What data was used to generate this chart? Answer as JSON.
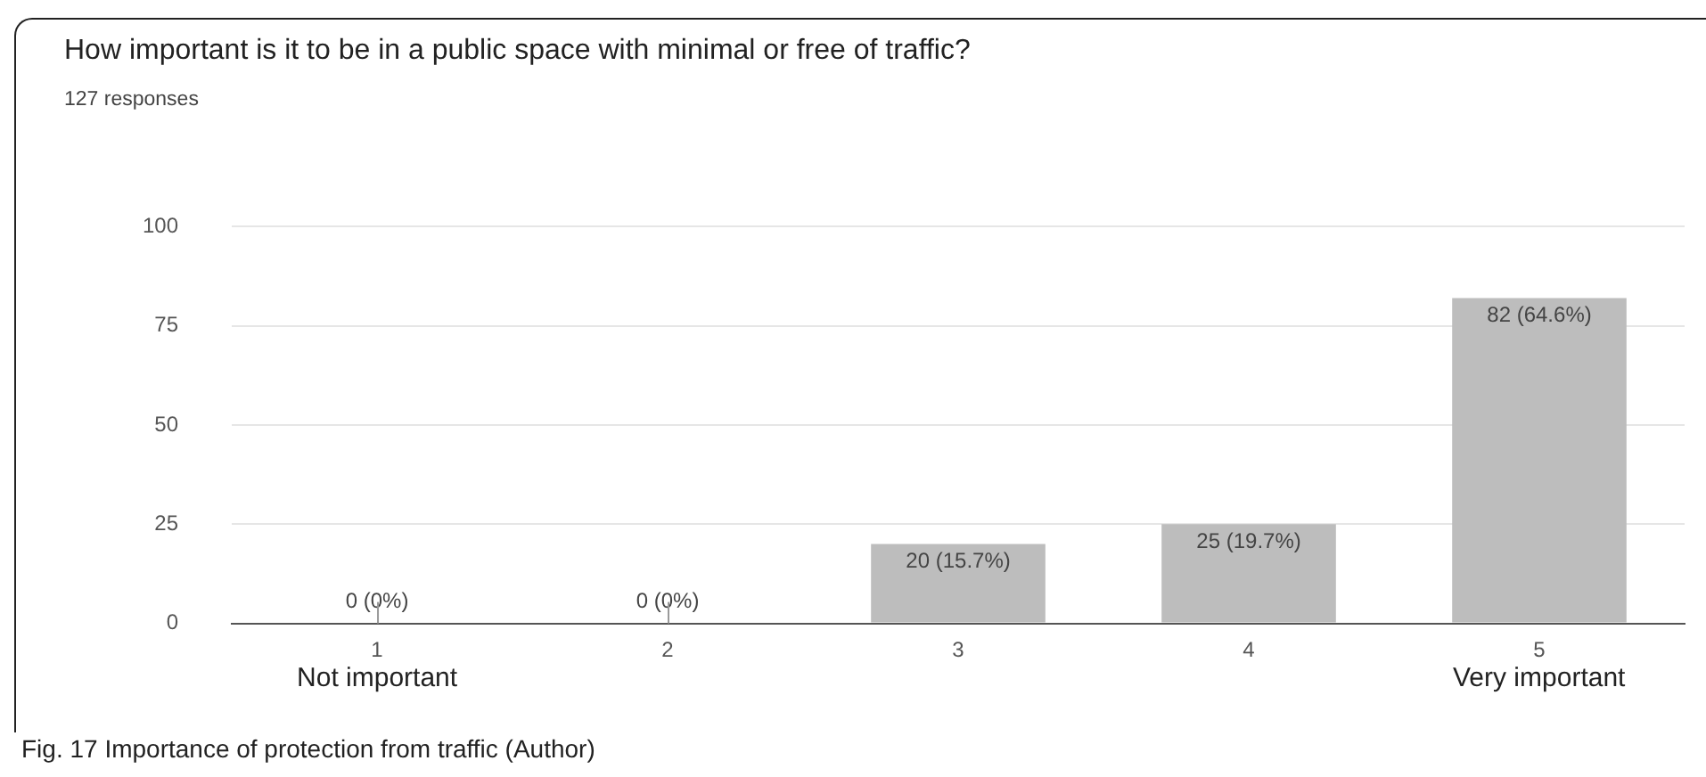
{
  "chart_data": {
    "type": "bar",
    "title": "How important is it to be in a public space with minimal or free of traffic?",
    "subtitle": "127 responses",
    "categories": [
      "1",
      "2",
      "3",
      "4",
      "5"
    ],
    "values": [
      0,
      0,
      20,
      25,
      82
    ],
    "color": "#bdbdbd",
    "value_labels": [
      "0 (0%)",
      "0 (0%)",
      "20 (15.7%)",
      "25 (19.7%)",
      "82 (64.6%)"
    ],
    "ylim": [
      0,
      100
    ],
    "yticks": [
      0,
      25,
      50,
      75,
      100
    ],
    "grid": "y",
    "legend": false,
    "annotations": [
      "Not important",
      "Very important",
      "Fig. 17 Importance of protection from traffic (Author)"
    ]
  }
}
